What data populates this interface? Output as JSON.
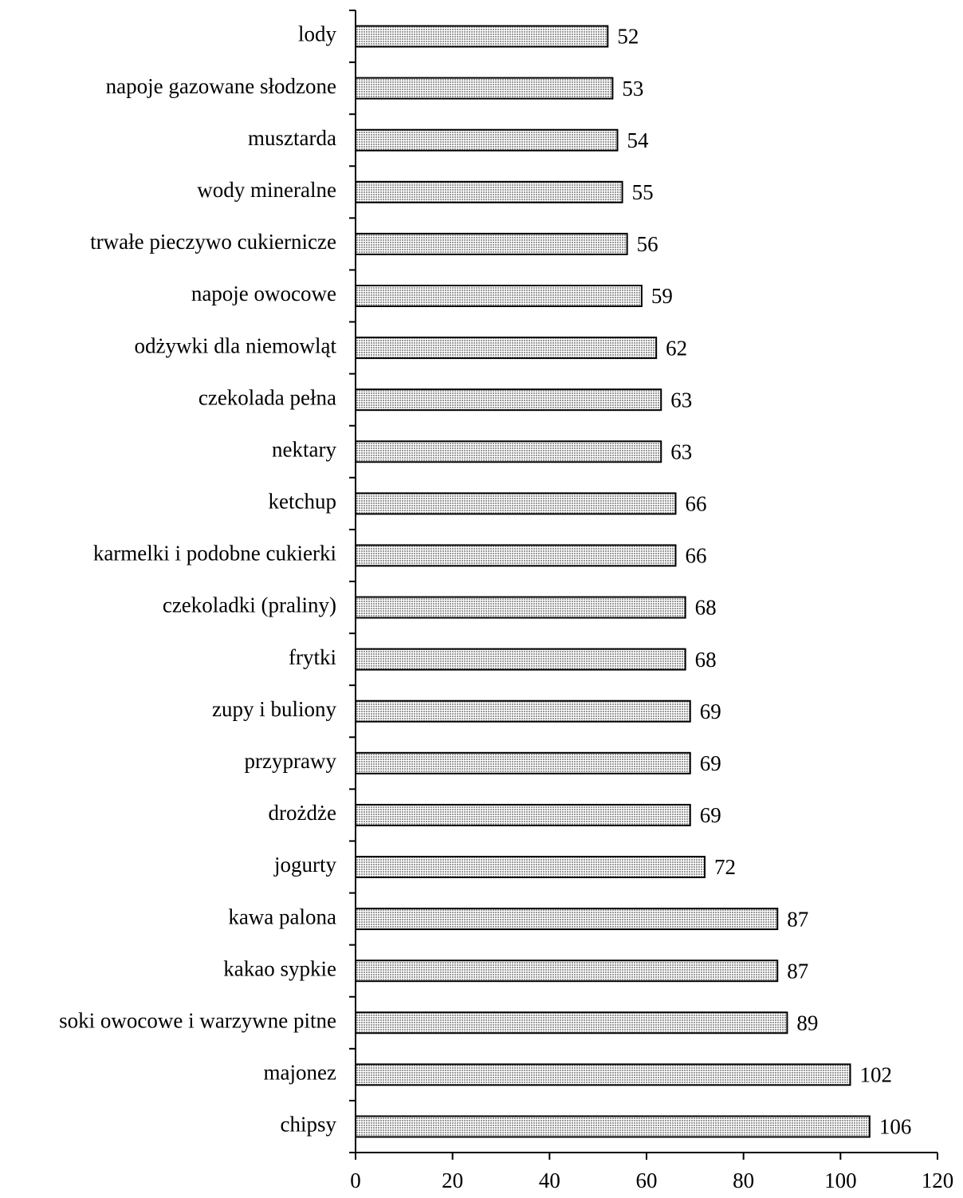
{
  "chart_data": {
    "type": "bar",
    "orientation": "horizontal",
    "categories": [
      "lody",
      "napoje gazowane słodzone",
      "musztarda",
      "wody mineralne",
      "trwałe pieczywo cukiernicze",
      "napoje owocowe",
      "odżywki dla niemowląt",
      "czekolada pełna",
      "nektary",
      "ketchup",
      "karmelki i podobne cukierki",
      "czekoladki (praliny)",
      "frytki",
      "zupy i buliony",
      "przyprawy",
      "drożdże",
      "jogurty",
      "kawa palona",
      "kakao sypkie",
      "soki owocowe i warzywne pitne",
      "majonez",
      "chipsy"
    ],
    "values": [
      52,
      53,
      54,
      55,
      56,
      59,
      62,
      63,
      63,
      66,
      66,
      68,
      68,
      69,
      69,
      69,
      72,
      87,
      87,
      89,
      102,
      106
    ],
    "color": "#d4d4d4",
    "xlim": [
      0,
      120
    ],
    "xticks": [
      0,
      20,
      40,
      60,
      80,
      100,
      120
    ]
  }
}
